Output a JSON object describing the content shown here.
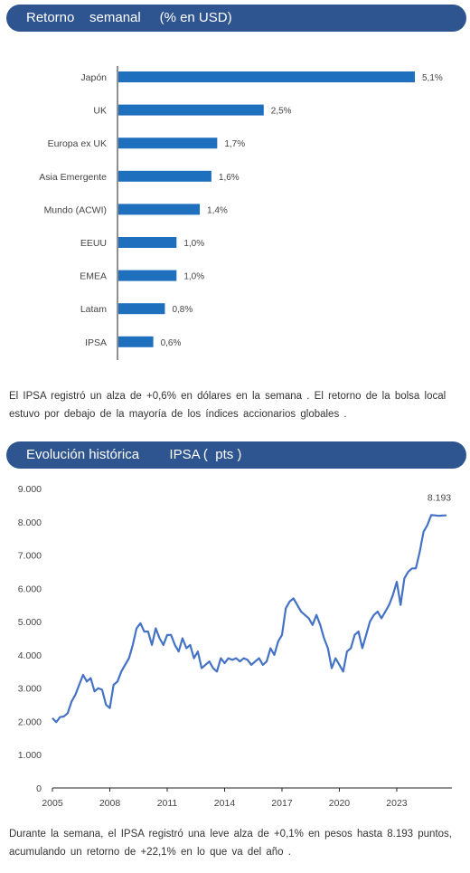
{
  "sections": {
    "weekly_title": "Retorno    semanal     (% en USD)",
    "weekly_text": "El IPSA  registró  un alza  de +0,6% en dólares  en la semana  . El retorno  de la bolsa local  estuvo  por debajo  de la mayoría  de los índices  accionarios  globales .",
    "history_title": "Evolución histórica        IPSA (  pts )",
    "history_text": "Durante  la semana,  el IPSA registró  una leve alza de +0,1% en pesos  hasta  8.193 puntos,  acumulando  un retorno  de +22,1% en lo que  va del año ."
  },
  "colors": {
    "banner": "#2e5590",
    "bar": "#1f6fbf",
    "line": "#4472c4"
  },
  "chart_data": [
    {
      "type": "bar",
      "orientation": "horizontal",
      "categories": [
        "Japón",
        "UK",
        "Europa ex UK",
        "Asia Emergente",
        "Mundo (ACWI)",
        "EEUU",
        "EMEA",
        "Latam",
        "IPSA"
      ],
      "values": [
        5.1,
        2.5,
        1.7,
        1.6,
        1.4,
        1.0,
        1.0,
        0.8,
        0.6
      ],
      "labels": [
        "5,1%",
        "2,5%",
        "1,7%",
        "1,6%",
        "1,4%",
        "1,0%",
        "1,0%",
        "0,8%",
        "0,6%"
      ],
      "xlim": [
        0,
        5.6
      ]
    },
    {
      "type": "line",
      "series": [
        {
          "x": [
            2005.0,
            2005.2,
            2005.4,
            2005.6,
            2005.8,
            2006.0,
            2006.2,
            2006.4,
            2006.6,
            2006.8,
            2007.0,
            2007.2,
            2007.4,
            2007.6,
            2007.8,
            2008.0,
            2008.2,
            2008.4,
            2008.6,
            2008.8,
            2009.0,
            2009.2,
            2009.4,
            2009.6,
            2009.8,
            2010.0,
            2010.2,
            2010.4,
            2010.6,
            2010.8,
            2011.0,
            2011.2,
            2011.4,
            2011.6,
            2011.8,
            2012.0,
            2012.2,
            2012.4,
            2012.6,
            2012.8,
            2013.0,
            2013.2,
            2013.4,
            2013.6,
            2013.8,
            2014.0,
            2014.2,
            2014.4,
            2014.6,
            2014.8,
            2015.0,
            2015.2,
            2015.4,
            2015.6,
            2015.8,
            2016.0,
            2016.2,
            2016.4,
            2016.6,
            2016.8,
            2017.0,
            2017.2,
            2017.4,
            2017.6,
            2017.8,
            2018.0,
            2018.2,
            2018.4,
            2018.6,
            2018.8,
            2019.0,
            2019.2,
            2019.4,
            2019.6,
            2019.8,
            2020.0,
            2020.2,
            2020.4,
            2020.6,
            2020.8,
            2021.0,
            2021.2,
            2021.4,
            2021.6,
            2021.8,
            2022.0,
            2022.2,
            2022.4,
            2022.6,
            2022.8,
            2023.0,
            2023.2,
            2023.4,
            2023.6,
            2023.8,
            2024.0,
            2024.2,
            2024.4,
            2024.6,
            2024.8,
            2025.0,
            2025.2,
            2025.4,
            2025.6
          ],
          "y": [
            2100,
            1980,
            2130,
            2150,
            2250,
            2600,
            2800,
            3100,
            3400,
            3200,
            3300,
            2900,
            3000,
            2950,
            2500,
            2400,
            3100,
            3200,
            3500,
            3700,
            3900,
            4300,
            4800,
            4950,
            4700,
            4700,
            4300,
            4800,
            4500,
            4300,
            4600,
            4600,
            4300,
            4100,
            4500,
            4200,
            4300,
            3900,
            4100,
            3600,
            3700,
            3800,
            3600,
            3500,
            3900,
            3750,
            3900,
            3850,
            3900,
            3800,
            3900,
            3850,
            3700,
            3800,
            3900,
            3700,
            3800,
            4200,
            4000,
            4400,
            4600,
            5400,
            5600,
            5700,
            5500,
            5300,
            5200,
            5100,
            4900,
            5200,
            4900,
            4500,
            4200,
            3600,
            3900,
            3700,
            3500,
            4100,
            4200,
            4600,
            4700,
            4200,
            4600,
            5000,
            5200,
            5300,
            5100,
            5300,
            5500,
            5800,
            6200,
            5500,
            6300,
            6500,
            6600,
            6600,
            7100,
            7700,
            7900,
            8200,
            8193,
            8180,
            8190,
            8193
          ],
          "color": "#4472c4"
        }
      ],
      "xlim": [
        2005,
        2025.6
      ],
      "xticks": [
        2005,
        2008,
        2011,
        2014,
        2017,
        2020,
        2023
      ],
      "xtick_labels": [
        "2005",
        "2008",
        "2011",
        "2014",
        "2017",
        "2020",
        "2023"
      ],
      "ylim": [
        0,
        9000
      ],
      "yticks": [
        0,
        1000,
        2000,
        3000,
        4000,
        5000,
        6000,
        7000,
        8000,
        9000
      ],
      "ytick_labels": [
        "0",
        "1.000",
        "2.000",
        "3.000",
        "4.000",
        "5.000",
        "6.000",
        "7.000",
        "8.000",
        "9.000"
      ],
      "end_label": "8.193",
      "grid": false
    }
  ]
}
